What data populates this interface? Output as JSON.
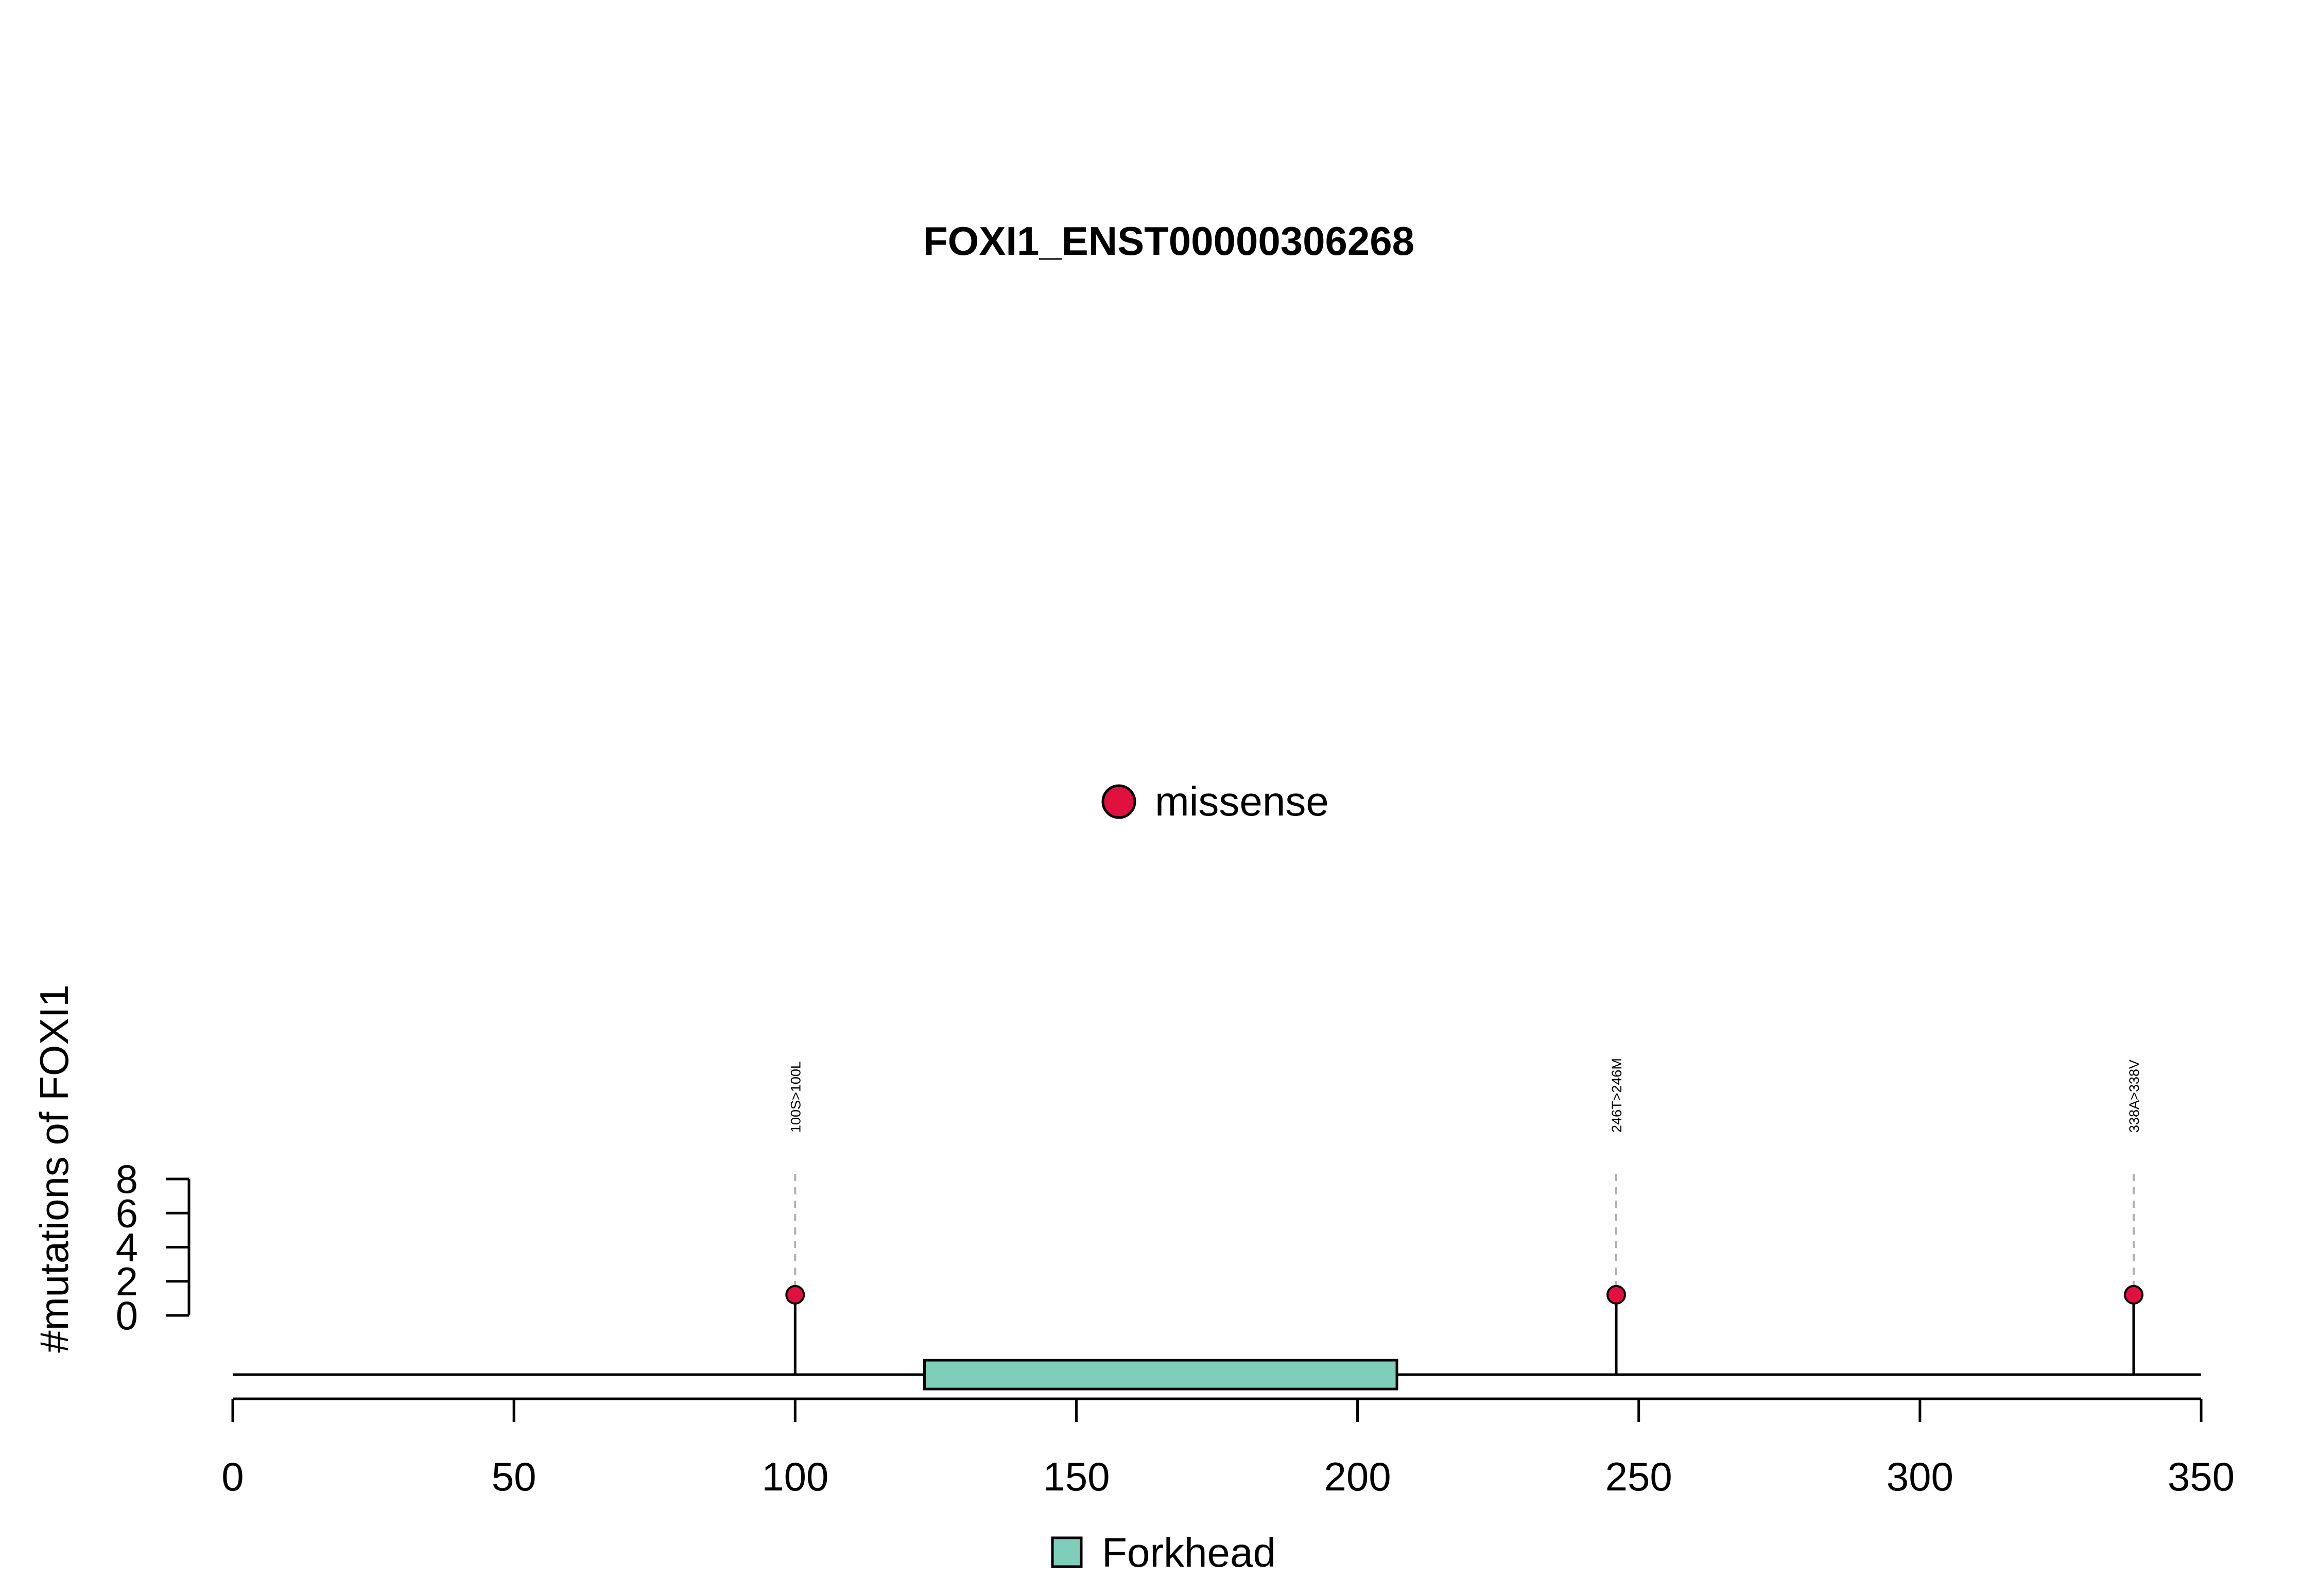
{
  "chart_data": {
    "type": "lollipop",
    "title": "FOXI1_ENST00000306268",
    "ylabel": "#mutations of FOXI1",
    "xlabel": "",
    "x_range": [
      0,
      350
    ],
    "x_ticks": [
      "0",
      "50",
      "100",
      "150",
      "200",
      "250",
      "300",
      "350"
    ],
    "y_range": [
      0,
      8
    ],
    "y_ticks": [
      "0",
      "2",
      "4",
      "6",
      "8"
    ],
    "grid": false,
    "mutation_legend": [
      {
        "label": "missense",
        "color": "#e0103f"
      }
    ],
    "mutations": [
      {
        "position": 100,
        "count": 1,
        "label": "100S>100L",
        "type": "missense"
      },
      {
        "position": 246,
        "count": 1,
        "label": "246T>246M",
        "type": "missense"
      },
      {
        "position": 338,
        "count": 1,
        "label": "338A>338V",
        "type": "missense"
      }
    ],
    "domains": [
      {
        "name": "Forkhead",
        "start": 123,
        "end": 207,
        "color": "#7fcdbb"
      }
    ],
    "domain_legend": [
      {
        "label": "Forkhead",
        "color": "#7fcdbb"
      }
    ]
  }
}
